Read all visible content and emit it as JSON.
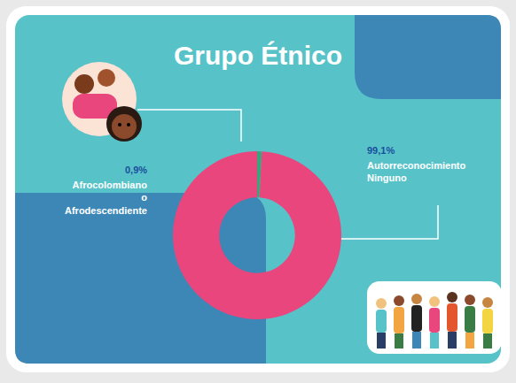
{
  "chart_data": {
    "type": "pie",
    "title": "Grupo Étnico",
    "categories": [
      "Afrocolombiano o Afrodescendiente",
      "Autorreconocimiento Ninguno"
    ],
    "values": [
      0.9,
      99.1
    ],
    "value_labels": [
      "0,9%",
      "99,1%"
    ],
    "colors": [
      "#3aa57a",
      "#e8467d"
    ],
    "data_labels": true
  }
}
